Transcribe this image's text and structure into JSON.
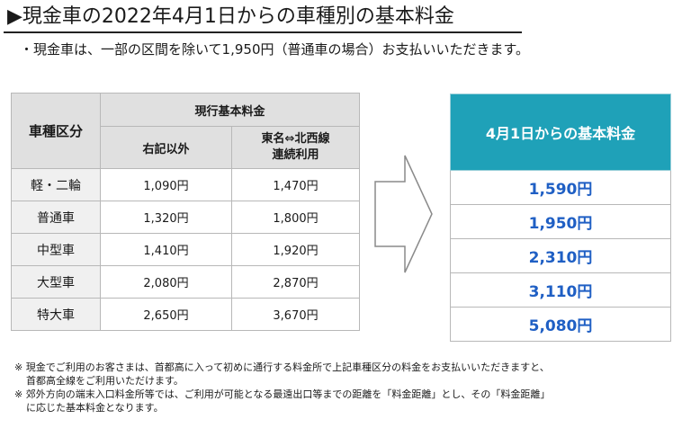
{
  "title": "▶現金車の2022年4月1日からの車種別の基本料金",
  "subtitle": "・現金車は、一部の区間を除いて1,950円（普通車の場合）お支払いいただきます。",
  "current_table": {
    "header_category": "車種区分",
    "header_group": "現行基本料金",
    "header_col1": "右記以外",
    "header_col2_line1": "東名⇔北西線",
    "header_col2_line2": "連続利用",
    "rows": [
      {
        "category": "軽・二輪",
        "col1": "1,090円",
        "col2": "1,470円"
      },
      {
        "category": "普通車",
        "col1": "1,320円",
        "col2": "1,800円"
      },
      {
        "category": "中型車",
        "col1": "1,410円",
        "col2": "1,920円"
      },
      {
        "category": "大型車",
        "col1": "2,080円",
        "col2": "2,870円"
      },
      {
        "category": "特大車",
        "col1": "2,650円",
        "col2": "3,670円"
      }
    ]
  },
  "new_table": {
    "header": "4月1日からの基本料金",
    "values": [
      "1,590円",
      "1,950円",
      "2,310円",
      "3,110円",
      "5,080円"
    ]
  },
  "notes": [
    {
      "line1": "※ 現金でご利用のお客さまは、首都高に入って初めに通行する料金所で上記車種区分の料金をお支払いいただきますと、",
      "line2": "首都高全線をご利用いただけます。"
    },
    {
      "line1": "※ 郊外方向の端末入口料金所等では、ご利用が可能となる最遠出口等までの距離を「料金距離」とし、その「料金距離」",
      "line2": "に応じた基本料金となります。"
    }
  ],
  "colors": {
    "accent": "#1fa1b8",
    "value_blue": "#1f5fc4",
    "header_gray": "#e0e0e0"
  }
}
